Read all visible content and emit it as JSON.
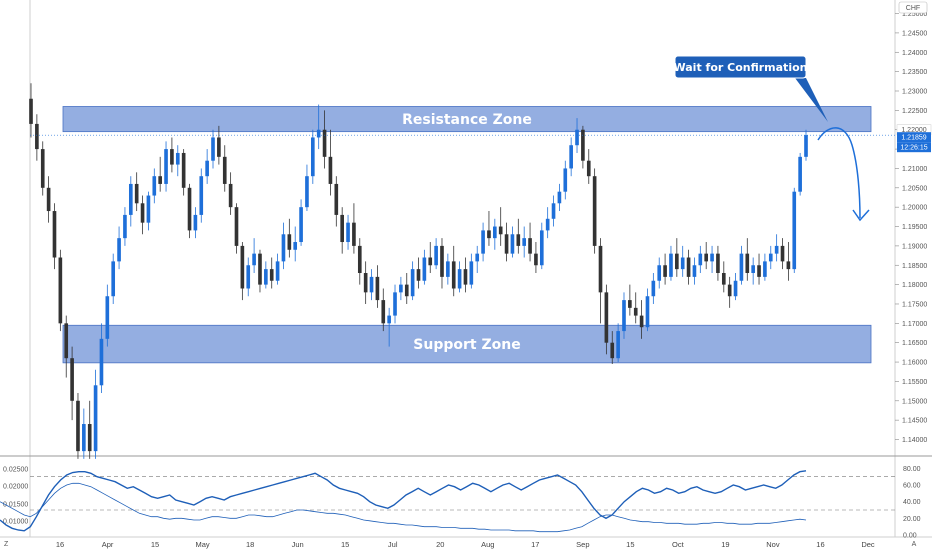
{
  "chart_data": {
    "type": "candlestick",
    "currency": "CHF",
    "price_axis": {
      "ticks": [
        "1.14000",
        "1.14500",
        "1.15000",
        "1.15500",
        "1.16000",
        "1.16500",
        "1.17000",
        "1.17500",
        "1.18000",
        "1.18500",
        "1.19000",
        "1.19500",
        "1.20000",
        "1.20500",
        "1.21000",
        "1.21500",
        "1.22000",
        "1.22500",
        "1.23000",
        "1.23500",
        "1.24000",
        "1.24500",
        "1.25000"
      ],
      "range": [
        1.136,
        1.2535
      ]
    },
    "time_axis": {
      "labels": [
        "16",
        "Apr",
        "15",
        "May",
        "18",
        "Jun",
        "15",
        "Jul",
        "20",
        "Aug",
        "17",
        "Sep",
        "15",
        "Oct",
        "19",
        "Nov",
        "16",
        "Dec"
      ]
    },
    "last_price": {
      "value": "1.21859",
      "countdown": "12:26:15",
      "dotted_value": "1.22000"
    },
    "zones": [
      {
        "label": "Resistance Zone",
        "top": 1.226,
        "bottom": 1.2195,
        "color": "#6b8fd6"
      },
      {
        "label": "Support Zone",
        "top": 1.1695,
        "bottom": 1.1598,
        "color": "#6b8fd6"
      }
    ],
    "annotation": {
      "text": "Wait for Confirmation",
      "color": "#1e5fb8"
    },
    "candles": [
      {
        "o": 1.228,
        "h": 1.232,
        "c": 1.2215,
        "l": 1.218
      },
      {
        "o": 1.2215,
        "h": 1.224,
        "c": 1.215,
        "l": 1.212
      },
      {
        "o": 1.215,
        "h": 1.217,
        "c": 1.205,
        "l": 1.203
      },
      {
        "o": 1.205,
        "h": 1.208,
        "c": 1.199,
        "l": 1.196
      },
      {
        "o": 1.199,
        "h": 1.201,
        "c": 1.187,
        "l": 1.184
      },
      {
        "o": 1.187,
        "h": 1.189,
        "c": 1.17,
        "l": 1.168
      },
      {
        "o": 1.17,
        "h": 1.172,
        "c": 1.161,
        "l": 1.156
      },
      {
        "o": 1.161,
        "h": 1.164,
        "c": 1.15,
        "l": 1.145
      },
      {
        "o": 1.15,
        "h": 1.152,
        "c": 1.137,
        "l": 1.135
      },
      {
        "o": 1.137,
        "h": 1.148,
        "c": 1.144,
        "l": 1.135
      },
      {
        "o": 1.144,
        "h": 1.15,
        "c": 1.137,
        "l": 1.135
      },
      {
        "o": 1.137,
        "h": 1.158,
        "c": 1.154,
        "l": 1.135
      },
      {
        "o": 1.154,
        "h": 1.17,
        "c": 1.166,
        "l": 1.152
      },
      {
        "o": 1.166,
        "h": 1.18,
        "c": 1.177,
        "l": 1.164
      },
      {
        "o": 1.177,
        "h": 1.188,
        "c": 1.186,
        "l": 1.175
      },
      {
        "o": 1.186,
        "h": 1.195,
        "c": 1.192,
        "l": 1.184
      },
      {
        "o": 1.192,
        "h": 1.2,
        "c": 1.198,
        "l": 1.19
      },
      {
        "o": 1.198,
        "h": 1.208,
        "c": 1.206,
        "l": 1.195
      },
      {
        "o": 1.206,
        "h": 1.209,
        "c": 1.201,
        "l": 1.199
      },
      {
        "o": 1.201,
        "h": 1.203,
        "c": 1.196,
        "l": 1.193
      },
      {
        "o": 1.196,
        "h": 1.204,
        "c": 1.203,
        "l": 1.194
      },
      {
        "o": 1.203,
        "h": 1.21,
        "c": 1.208,
        "l": 1.201
      },
      {
        "o": 1.208,
        "h": 1.213,
        "c": 1.206,
        "l": 1.204
      },
      {
        "o": 1.206,
        "h": 1.217,
        "c": 1.215,
        "l": 1.204
      },
      {
        "o": 1.215,
        "h": 1.218,
        "c": 1.211,
        "l": 1.209
      },
      {
        "o": 1.211,
        "h": 1.216,
        "c": 1.214,
        "l": 1.208
      },
      {
        "o": 1.214,
        "h": 1.215,
        "c": 1.205,
        "l": 1.203
      },
      {
        "o": 1.205,
        "h": 1.206,
        "c": 1.194,
        "l": 1.192
      },
      {
        "o": 1.194,
        "h": 1.2,
        "c": 1.198,
        "l": 1.192
      },
      {
        "o": 1.198,
        "h": 1.21,
        "c": 1.208,
        "l": 1.196
      },
      {
        "o": 1.208,
        "h": 1.215,
        "c": 1.212,
        "l": 1.206
      },
      {
        "o": 1.212,
        "h": 1.22,
        "c": 1.218,
        "l": 1.21
      },
      {
        "o": 1.218,
        "h": 1.221,
        "c": 1.213,
        "l": 1.211
      },
      {
        "o": 1.213,
        "h": 1.216,
        "c": 1.206,
        "l": 1.204
      },
      {
        "o": 1.206,
        "h": 1.209,
        "c": 1.2,
        "l": 1.198
      },
      {
        "o": 1.2,
        "h": 1.201,
        "c": 1.19,
        "l": 1.188
      },
      {
        "o": 1.19,
        "h": 1.191,
        "c": 1.179,
        "l": 1.176
      },
      {
        "o": 1.179,
        "h": 1.187,
        "c": 1.185,
        "l": 1.177
      },
      {
        "o": 1.185,
        "h": 1.192,
        "c": 1.188,
        "l": 1.183
      },
      {
        "o": 1.188,
        "h": 1.189,
        "c": 1.18,
        "l": 1.178
      },
      {
        "o": 1.18,
        "h": 1.186,
        "c": 1.184,
        "l": 1.179
      },
      {
        "o": 1.184,
        "h": 1.187,
        "c": 1.181,
        "l": 1.179
      },
      {
        "o": 1.181,
        "h": 1.188,
        "c": 1.186,
        "l": 1.18
      },
      {
        "o": 1.186,
        "h": 1.196,
        "c": 1.193,
        "l": 1.184
      },
      {
        "o": 1.193,
        "h": 1.197,
        "c": 1.189,
        "l": 1.187
      },
      {
        "o": 1.189,
        "h": 1.195,
        "c": 1.191,
        "l": 1.186
      },
      {
        "o": 1.191,
        "h": 1.202,
        "c": 1.2,
        "l": 1.19
      },
      {
        "o": 1.2,
        "h": 1.211,
        "c": 1.208,
        "l": 1.199
      },
      {
        "o": 1.208,
        "h": 1.22,
        "c": 1.218,
        "l": 1.206
      },
      {
        "o": 1.218,
        "h": 1.2265,
        "c": 1.22,
        "l": 1.215
      },
      {
        "o": 1.22,
        "h": 1.225,
        "c": 1.213,
        "l": 1.21
      },
      {
        "o": 1.213,
        "h": 1.22,
        "c": 1.206,
        "l": 1.203
      },
      {
        "o": 1.206,
        "h": 1.208,
        "c": 1.198,
        "l": 1.195
      },
      {
        "o": 1.198,
        "h": 1.2,
        "c": 1.191,
        "l": 1.188
      },
      {
        "o": 1.191,
        "h": 1.198,
        "c": 1.196,
        "l": 1.189
      },
      {
        "o": 1.196,
        "h": 1.201,
        "c": 1.19,
        "l": 1.188
      },
      {
        "o": 1.19,
        "h": 1.192,
        "c": 1.183,
        "l": 1.18
      },
      {
        "o": 1.183,
        "h": 1.186,
        "c": 1.178,
        "l": 1.175
      },
      {
        "o": 1.178,
        "h": 1.184,
        "c": 1.182,
        "l": 1.176
      },
      {
        "o": 1.182,
        "h": 1.185,
        "c": 1.176,
        "l": 1.174
      },
      {
        "o": 1.176,
        "h": 1.179,
        "c": 1.17,
        "l": 1.168
      },
      {
        "o": 1.17,
        "h": 1.174,
        "c": 1.172,
        "l": 1.164
      },
      {
        "o": 1.172,
        "h": 1.18,
        "c": 1.178,
        "l": 1.17
      },
      {
        "o": 1.178,
        "h": 1.182,
        "c": 1.18,
        "l": 1.176
      },
      {
        "o": 1.18,
        "h": 1.183,
        "c": 1.177,
        "l": 1.175
      },
      {
        "o": 1.177,
        "h": 1.186,
        "c": 1.184,
        "l": 1.176
      },
      {
        "o": 1.184,
        "h": 1.187,
        "c": 1.181,
        "l": 1.179
      },
      {
        "o": 1.181,
        "h": 1.189,
        "c": 1.187,
        "l": 1.18
      },
      {
        "o": 1.187,
        "h": 1.191,
        "c": 1.185,
        "l": 1.183
      },
      {
        "o": 1.185,
        "h": 1.192,
        "c": 1.19,
        "l": 1.184
      },
      {
        "o": 1.19,
        "h": 1.192,
        "c": 1.182,
        "l": 1.179
      },
      {
        "o": 1.182,
        "h": 1.188,
        "c": 1.186,
        "l": 1.18
      },
      {
        "o": 1.186,
        "h": 1.19,
        "c": 1.179,
        "l": 1.177
      },
      {
        "o": 1.179,
        "h": 1.186,
        "c": 1.184,
        "l": 1.178
      },
      {
        "o": 1.184,
        "h": 1.187,
        "c": 1.18,
        "l": 1.178
      },
      {
        "o": 1.18,
        "h": 1.188,
        "c": 1.186,
        "l": 1.179
      },
      {
        "o": 1.186,
        "h": 1.19,
        "c": 1.188,
        "l": 1.183
      },
      {
        "o": 1.188,
        "h": 1.196,
        "c": 1.194,
        "l": 1.186
      },
      {
        "o": 1.194,
        "h": 1.199,
        "c": 1.192,
        "l": 1.19
      },
      {
        "o": 1.192,
        "h": 1.197,
        "c": 1.195,
        "l": 1.189
      },
      {
        "o": 1.195,
        "h": 1.2,
        "c": 1.193,
        "l": 1.19
      },
      {
        "o": 1.193,
        "h": 1.196,
        "c": 1.188,
        "l": 1.186
      },
      {
        "o": 1.188,
        "h": 1.195,
        "c": 1.193,
        "l": 1.187
      },
      {
        "o": 1.193,
        "h": 1.197,
        "c": 1.19,
        "l": 1.188
      },
      {
        "o": 1.19,
        "h": 1.195,
        "c": 1.192,
        "l": 1.187
      },
      {
        "o": 1.192,
        "h": 1.196,
        "c": 1.188,
        "l": 1.186
      },
      {
        "o": 1.188,
        "h": 1.191,
        "c": 1.185,
        "l": 1.183
      },
      {
        "o": 1.185,
        "h": 1.196,
        "c": 1.194,
        "l": 1.184
      },
      {
        "o": 1.194,
        "h": 1.2,
        "c": 1.197,
        "l": 1.192
      },
      {
        "o": 1.197,
        "h": 1.203,
        "c": 1.201,
        "l": 1.195
      },
      {
        "o": 1.201,
        "h": 1.206,
        "c": 1.204,
        "l": 1.199
      },
      {
        "o": 1.204,
        "h": 1.212,
        "c": 1.21,
        "l": 1.202
      },
      {
        "o": 1.21,
        "h": 1.218,
        "c": 1.216,
        "l": 1.208
      },
      {
        "o": 1.216,
        "h": 1.223,
        "c": 1.22,
        "l": 1.214
      },
      {
        "o": 1.22,
        "h": 1.221,
        "c": 1.212,
        "l": 1.21
      },
      {
        "o": 1.212,
        "h": 1.215,
        "c": 1.208,
        "l": 1.206
      },
      {
        "o": 1.208,
        "h": 1.21,
        "c": 1.19,
        "l": 1.188
      },
      {
        "o": 1.19,
        "h": 1.192,
        "c": 1.178,
        "l": 1.17
      },
      {
        "o": 1.178,
        "h": 1.18,
        "c": 1.165,
        "l": 1.162
      },
      {
        "o": 1.165,
        "h": 1.168,
        "c": 1.161,
        "l": 1.1595
      },
      {
        "o": 1.161,
        "h": 1.17,
        "c": 1.168,
        "l": 1.16
      },
      {
        "o": 1.168,
        "h": 1.178,
        "c": 1.176,
        "l": 1.166
      },
      {
        "o": 1.176,
        "h": 1.18,
        "c": 1.174,
        "l": 1.172
      },
      {
        "o": 1.174,
        "h": 1.178,
        "c": 1.172,
        "l": 1.17
      },
      {
        "o": 1.172,
        "h": 1.176,
        "c": 1.169,
        "l": 1.166
      },
      {
        "o": 1.169,
        "h": 1.179,
        "c": 1.177,
        "l": 1.168
      },
      {
        "o": 1.177,
        "h": 1.183,
        "c": 1.181,
        "l": 1.175
      },
      {
        "o": 1.181,
        "h": 1.187,
        "c": 1.185,
        "l": 1.179
      },
      {
        "o": 1.185,
        "h": 1.188,
        "c": 1.182,
        "l": 1.18
      },
      {
        "o": 1.182,
        "h": 1.19,
        "c": 1.188,
        "l": 1.181
      },
      {
        "o": 1.188,
        "h": 1.192,
        "c": 1.184,
        "l": 1.182
      },
      {
        "o": 1.184,
        "h": 1.19,
        "c": 1.187,
        "l": 1.182
      },
      {
        "o": 1.187,
        "h": 1.189,
        "c": 1.182,
        "l": 1.18
      },
      {
        "o": 1.182,
        "h": 1.187,
        "c": 1.185,
        "l": 1.18
      },
      {
        "o": 1.185,
        "h": 1.19,
        "c": 1.188,
        "l": 1.183
      },
      {
        "o": 1.188,
        "h": 1.191,
        "c": 1.186,
        "l": 1.184
      },
      {
        "o": 1.186,
        "h": 1.19,
        "c": 1.188,
        "l": 1.183
      },
      {
        "o": 1.188,
        "h": 1.19,
        "c": 1.183,
        "l": 1.181
      },
      {
        "o": 1.183,
        "h": 1.186,
        "c": 1.18,
        "l": 1.178
      },
      {
        "o": 1.18,
        "h": 1.182,
        "c": 1.177,
        "l": 1.174
      },
      {
        "o": 1.177,
        "h": 1.183,
        "c": 1.181,
        "l": 1.176
      },
      {
        "o": 1.181,
        "h": 1.19,
        "c": 1.188,
        "l": 1.18
      },
      {
        "o": 1.188,
        "h": 1.192,
        "c": 1.183,
        "l": 1.181
      },
      {
        "o": 1.183,
        "h": 1.187,
        "c": 1.185,
        "l": 1.18
      },
      {
        "o": 1.185,
        "h": 1.188,
        "c": 1.182,
        "l": 1.18
      },
      {
        "o": 1.182,
        "h": 1.188,
        "c": 1.186,
        "l": 1.181
      },
      {
        "o": 1.186,
        "h": 1.19,
        "c": 1.188,
        "l": 1.184
      },
      {
        "o": 1.188,
        "h": 1.193,
        "c": 1.19,
        "l": 1.186
      },
      {
        "o": 1.19,
        "h": 1.192,
        "c": 1.186,
        "l": 1.184
      },
      {
        "o": 1.186,
        "h": 1.191,
        "c": 1.184,
        "l": 1.181
      },
      {
        "o": 1.184,
        "h": 1.205,
        "c": 1.204,
        "l": 1.183
      },
      {
        "o": 1.204,
        "h": 1.214,
        "c": 1.213,
        "l": 1.203
      },
      {
        "o": 1.213,
        "h": 1.22,
        "c": 1.2186,
        "l": 1.212
      }
    ],
    "indicator": {
      "left_ticks": [
        "0.02500",
        "0.02000",
        "0.01500",
        "0.01000"
      ],
      "right_ticks": [
        "80.00",
        "60.00",
        "40.00",
        "20.00",
        "0.00"
      ],
      "levels": [
        70,
        30
      ],
      "thick_line": [
        18,
        12,
        8,
        6,
        5,
        10,
        22,
        35,
        48,
        58,
        66,
        72,
        75,
        76,
        76,
        74,
        70,
        68,
        66,
        64,
        60,
        56,
        58,
        54,
        50,
        46,
        44,
        46,
        48,
        42,
        40,
        38,
        36,
        40,
        44,
        46,
        44,
        42,
        46,
        48,
        50,
        52,
        54,
        56,
        58,
        60,
        62,
        64,
        66,
        68,
        70,
        72,
        74,
        70,
        66,
        60,
        56,
        54,
        52,
        50,
        46,
        40,
        36,
        34,
        32,
        36,
        42,
        48,
        52,
        56,
        52,
        48,
        52,
        56,
        60,
        58,
        54,
        58,
        62,
        60,
        56,
        52,
        56,
        60,
        62,
        58,
        54,
        58,
        62,
        66,
        68,
        70,
        72,
        68,
        64,
        60,
        52,
        42,
        32,
        24,
        20,
        24,
        32,
        40,
        46,
        52,
        56,
        54,
        50,
        52,
        56,
        54,
        50,
        52,
        56,
        58,
        54,
        52,
        50,
        52,
        56,
        60,
        58,
        54,
        56,
        58,
        60,
        58,
        56,
        60,
        66,
        72,
        76,
        77
      ],
      "thin_line": [
        40,
        36,
        32,
        28,
        24,
        22,
        26,
        34,
        42,
        50,
        56,
        60,
        62,
        62,
        60,
        58,
        54,
        50,
        46,
        42,
        38,
        34,
        30,
        26,
        24,
        22,
        22,
        20,
        19,
        20,
        20,
        19,
        18,
        18,
        20,
        22,
        22,
        21,
        20,
        20,
        22,
        24,
        24,
        23,
        22,
        22,
        24,
        26,
        28,
        30,
        30,
        29,
        28,
        27,
        26,
        26,
        25,
        24,
        22,
        20,
        18,
        17,
        16,
        15,
        14,
        14,
        13,
        12,
        12,
        11,
        10,
        10,
        10,
        9,
        9,
        9,
        8,
        8,
        8,
        7,
        7,
        6,
        6,
        6,
        6,
        5,
        5,
        5,
        5,
        4,
        4,
        4,
        4,
        5,
        6,
        8,
        10,
        14,
        18,
        22,
        24,
        24,
        22,
        20,
        18,
        17,
        16,
        16,
        15,
        15,
        14,
        14,
        14,
        13,
        13,
        13,
        14,
        14,
        15,
        15,
        14,
        14,
        13,
        13,
        13,
        14,
        14,
        14,
        15,
        16,
        17,
        18,
        19,
        18
      ]
    }
  }
}
